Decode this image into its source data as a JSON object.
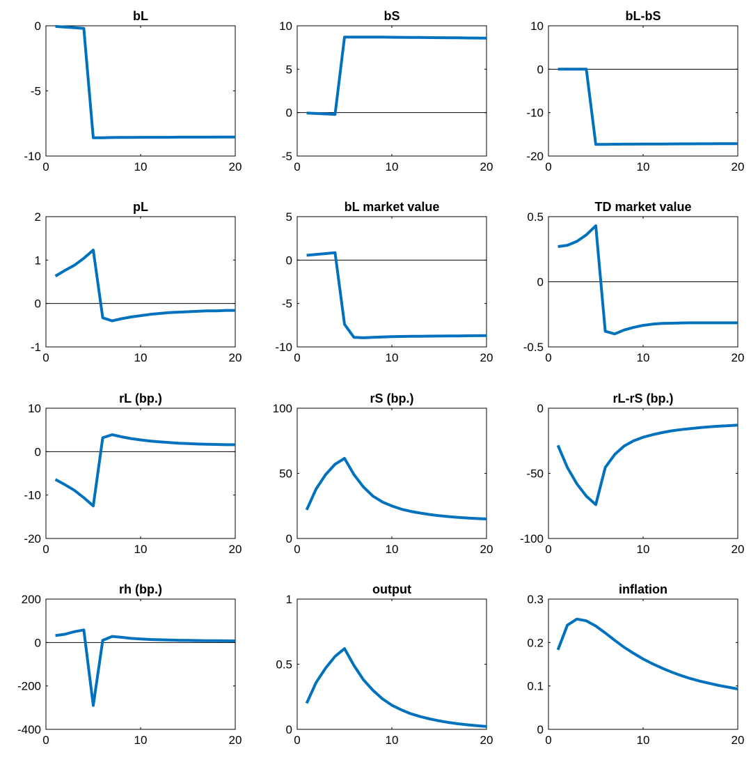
{
  "chart_data": [
    {
      "type": "line",
      "title": "bL",
      "xlim": [
        0,
        20
      ],
      "ylim": [
        -10,
        0
      ],
      "xticks": [
        0,
        10,
        20
      ],
      "yticks": [
        -10,
        -5,
        0
      ],
      "zero_line": true,
      "x": [
        1,
        2,
        3,
        4,
        5,
        6,
        7,
        8,
        9,
        10,
        11,
        12,
        13,
        14,
        15,
        16,
        17,
        18,
        19,
        20
      ],
      "series": [
        {
          "values": [
            -0.05,
            -0.1,
            -0.15,
            -0.2,
            -8.6,
            -8.6,
            -8.58,
            -8.57,
            -8.57,
            -8.56,
            -8.56,
            -8.56,
            -8.56,
            -8.55,
            -8.55,
            -8.55,
            -8.55,
            -8.54,
            -8.54,
            -8.54
          ]
        }
      ]
    },
    {
      "type": "line",
      "title": "bS",
      "xlim": [
        0,
        20
      ],
      "ylim": [
        -5,
        10
      ],
      "xticks": [
        0,
        10,
        20
      ],
      "yticks": [
        -5,
        0,
        5,
        10
      ],
      "zero_line": true,
      "x": [
        1,
        2,
        3,
        4,
        5,
        6,
        7,
        8,
        9,
        10,
        11,
        12,
        13,
        14,
        15,
        16,
        17,
        18,
        19,
        20
      ],
      "series": [
        {
          "values": [
            -0.05,
            -0.1,
            -0.15,
            -0.2,
            8.7,
            8.7,
            8.7,
            8.7,
            8.69,
            8.68,
            8.67,
            8.66,
            8.65,
            8.64,
            8.63,
            8.62,
            8.61,
            8.6,
            8.59,
            8.58
          ]
        }
      ]
    },
    {
      "type": "line",
      "title": "bL-bS",
      "xlim": [
        0,
        20
      ],
      "ylim": [
        -20,
        10
      ],
      "xticks": [
        0,
        10,
        20
      ],
      "yticks": [
        -20,
        -10,
        0,
        10
      ],
      "zero_line": true,
      "x": [
        1,
        2,
        3,
        4,
        5,
        6,
        7,
        8,
        9,
        10,
        11,
        12,
        13,
        14,
        15,
        16,
        17,
        18,
        19,
        20
      ],
      "series": [
        {
          "values": [
            0,
            0,
            0,
            0,
            -17.3,
            -17.3,
            -17.28,
            -17.26,
            -17.25,
            -17.24,
            -17.23,
            -17.22,
            -17.21,
            -17.2,
            -17.19,
            -17.18,
            -17.17,
            -17.16,
            -17.15,
            -17.14
          ]
        }
      ]
    },
    {
      "type": "line",
      "title": "pL",
      "xlim": [
        0,
        20
      ],
      "ylim": [
        -1,
        2
      ],
      "xticks": [
        0,
        10,
        20
      ],
      "yticks": [
        -1,
        0,
        1,
        2
      ],
      "zero_line": true,
      "x": [
        1,
        2,
        3,
        4,
        5,
        6,
        7,
        8,
        9,
        10,
        11,
        12,
        13,
        14,
        15,
        16,
        17,
        18,
        19,
        20
      ],
      "series": [
        {
          "values": [
            0.63,
            0.76,
            0.88,
            1.04,
            1.23,
            -0.33,
            -0.4,
            -0.35,
            -0.31,
            -0.28,
            -0.25,
            -0.23,
            -0.21,
            -0.2,
            -0.19,
            -0.18,
            -0.17,
            -0.17,
            -0.16,
            -0.16
          ]
        }
      ]
    },
    {
      "type": "line",
      "title": "bL market value",
      "xlim": [
        0,
        20
      ],
      "ylim": [
        -10,
        5
      ],
      "xticks": [
        0,
        10,
        20
      ],
      "yticks": [
        -10,
        -5,
        0,
        5
      ],
      "zero_line": true,
      "x": [
        1,
        2,
        3,
        4,
        5,
        6,
        7,
        8,
        9,
        10,
        11,
        12,
        13,
        14,
        15,
        16,
        17,
        18,
        19,
        20
      ],
      "series": [
        {
          "values": [
            0.55,
            0.65,
            0.75,
            0.85,
            -7.4,
            -8.9,
            -8.95,
            -8.9,
            -8.85,
            -8.82,
            -8.8,
            -8.78,
            -8.77,
            -8.76,
            -8.75,
            -8.74,
            -8.73,
            -8.72,
            -8.71,
            -8.7
          ]
        }
      ]
    },
    {
      "type": "line",
      "title": "TD market value",
      "xlim": [
        0,
        20
      ],
      "ylim": [
        -0.5,
        0.5
      ],
      "xticks": [
        0,
        10,
        20
      ],
      "yticks": [
        -0.5,
        0,
        0.5
      ],
      "zero_line": true,
      "x": [
        1,
        2,
        3,
        4,
        5,
        6,
        7,
        8,
        9,
        10,
        11,
        12,
        13,
        14,
        15,
        16,
        17,
        18,
        19,
        20
      ],
      "series": [
        {
          "values": [
            0.27,
            0.28,
            0.31,
            0.36,
            0.43,
            -0.38,
            -0.4,
            -0.37,
            -0.35,
            -0.335,
            -0.325,
            -0.32,
            -0.318,
            -0.316,
            -0.315,
            -0.315,
            -0.315,
            -0.315,
            -0.315,
            -0.315
          ]
        }
      ]
    },
    {
      "type": "line",
      "title": "rL (bp.)",
      "xlim": [
        0,
        20
      ],
      "ylim": [
        -20,
        10
      ],
      "xticks": [
        0,
        10,
        20
      ],
      "yticks": [
        -20,
        -10,
        0,
        10
      ],
      "zero_line": true,
      "x": [
        1,
        2,
        3,
        4,
        5,
        6,
        7,
        8,
        9,
        10,
        11,
        12,
        13,
        14,
        15,
        16,
        17,
        18,
        19,
        20
      ],
      "series": [
        {
          "values": [
            -6.4,
            -7.6,
            -8.9,
            -10.6,
            -12.5,
            3.2,
            3.9,
            3.4,
            3.0,
            2.7,
            2.45,
            2.25,
            2.1,
            1.95,
            1.85,
            1.75,
            1.7,
            1.65,
            1.6,
            1.6
          ]
        }
      ]
    },
    {
      "type": "line",
      "title": "rS (bp.)",
      "xlim": [
        0,
        20
      ],
      "ylim": [
        0,
        100
      ],
      "xticks": [
        0,
        10,
        20
      ],
      "yticks": [
        0,
        50,
        100
      ],
      "zero_line": true,
      "x": [
        1,
        2,
        3,
        4,
        5,
        6,
        7,
        8,
        9,
        10,
        11,
        12,
        13,
        14,
        15,
        16,
        17,
        18,
        19,
        20
      ],
      "series": [
        {
          "values": [
            22,
            38,
            49,
            57,
            61.5,
            49,
            39.5,
            32.5,
            28,
            25,
            22.5,
            20.8,
            19.5,
            18.4,
            17.5,
            16.8,
            16.2,
            15.7,
            15.3,
            15
          ]
        }
      ]
    },
    {
      "type": "line",
      "title": "rL-rS (bp.)",
      "xlim": [
        0,
        20
      ],
      "ylim": [
        -100,
        0
      ],
      "xticks": [
        0,
        10,
        20
      ],
      "yticks": [
        -100,
        -50,
        0
      ],
      "zero_line": true,
      "x": [
        1,
        2,
        3,
        4,
        5,
        6,
        7,
        8,
        9,
        10,
        11,
        12,
        13,
        14,
        15,
        16,
        17,
        18,
        19,
        20
      ],
      "series": [
        {
          "values": [
            -28.5,
            -45.5,
            -58,
            -67.5,
            -74,
            -45.5,
            -35.5,
            -29,
            -25,
            -22.3,
            -20.3,
            -18.7,
            -17.4,
            -16.4,
            -15.6,
            -14.9,
            -14.3,
            -13.8,
            -13.4,
            -13
          ]
        }
      ]
    },
    {
      "type": "line",
      "title": "rh (bp.)",
      "xlim": [
        0,
        20
      ],
      "ylim": [
        -400,
        200
      ],
      "xticks": [
        0,
        10,
        20
      ],
      "yticks": [
        -400,
        -200,
        0,
        200
      ],
      "zero_line": true,
      "x": [
        1,
        2,
        3,
        4,
        5,
        6,
        7,
        8,
        9,
        10,
        11,
        12,
        13,
        14,
        15,
        16,
        17,
        18,
        19,
        20
      ],
      "series": [
        {
          "values": [
            32,
            38,
            50,
            58,
            -290,
            10,
            28,
            24,
            19,
            16,
            14,
            12.5,
            11.5,
            10.5,
            9.8,
            9.2,
            8.6,
            8.2,
            7.8,
            7.5
          ]
        }
      ]
    },
    {
      "type": "line",
      "title": "output",
      "xlim": [
        0,
        20
      ],
      "ylim": [
        0,
        1
      ],
      "xticks": [
        0,
        10,
        20
      ],
      "yticks": [
        0,
        0.5,
        1
      ],
      "zero_line": true,
      "x": [
        1,
        2,
        3,
        4,
        5,
        6,
        7,
        8,
        9,
        10,
        11,
        12,
        13,
        14,
        15,
        16,
        17,
        18,
        19,
        20
      ],
      "series": [
        {
          "values": [
            0.2,
            0.36,
            0.47,
            0.56,
            0.62,
            0.49,
            0.38,
            0.3,
            0.235,
            0.185,
            0.15,
            0.12,
            0.098,
            0.08,
            0.065,
            0.053,
            0.043,
            0.035,
            0.028,
            0.022
          ]
        }
      ]
    },
    {
      "type": "line",
      "title": "inflation",
      "xlim": [
        0,
        20
      ],
      "ylim": [
        0,
        0.3
      ],
      "xticks": [
        0,
        10,
        20
      ],
      "yticks": [
        0,
        0.1,
        0.2,
        0.3
      ],
      "zero_line": true,
      "x": [
        1,
        2,
        3,
        4,
        5,
        6,
        7,
        8,
        9,
        10,
        11,
        12,
        13,
        14,
        15,
        16,
        17,
        18,
        19,
        20
      ],
      "series": [
        {
          "values": [
            0.183,
            0.24,
            0.254,
            0.25,
            0.238,
            0.222,
            0.205,
            0.189,
            0.175,
            0.162,
            0.151,
            0.141,
            0.132,
            0.124,
            0.117,
            0.111,
            0.106,
            0.101,
            0.097,
            0.093
          ]
        }
      ]
    }
  ],
  "style": {
    "line_color": "#0072BD",
    "axis_color": "#000000",
    "zero_line_color": "#000000",
    "background": "#ffffff"
  }
}
